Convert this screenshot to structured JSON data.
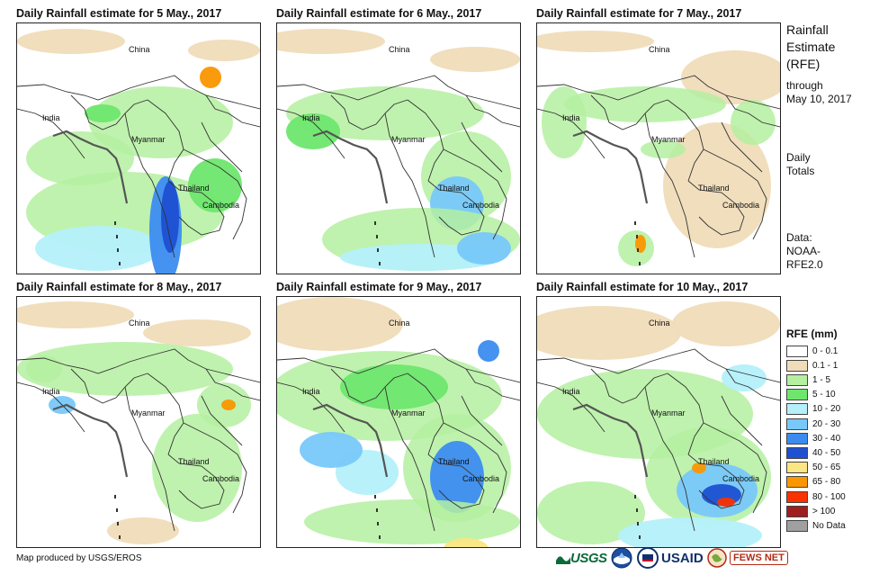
{
  "panels": [
    {
      "title": "Daily Rainfall estimate for 5 May., 2017",
      "labels": {
        "china": "China",
        "india": "India",
        "myanmar": "Myanmar",
        "thailand": "Thailand",
        "cambodia": "Cambodia"
      }
    },
    {
      "title": "Daily Rainfall estimate for 6 May., 2017",
      "labels": {
        "china": "China",
        "india": "India",
        "myanmar": "Myanmar",
        "thailand": "Thailand",
        "cambodia": "Cambodia"
      }
    },
    {
      "title": "Daily Rainfall estimate for 7 May., 2017",
      "labels": {
        "china": "China",
        "india": "India",
        "myanmar": "Myanmar",
        "thailand": "Thailand",
        "cambodia": "Cambodia"
      }
    },
    {
      "title": "Daily Rainfall estimate for 8 May., 2017",
      "labels": {
        "china": "China",
        "india": "India",
        "myanmar": "Myanmar",
        "thailand": "Thailand",
        "cambodia": "Cambodia"
      }
    },
    {
      "title": "Daily Rainfall estimate for 9 May., 2017",
      "labels": {
        "china": "China",
        "india": "India",
        "myanmar": "Myanmar",
        "thailand": "Thailand",
        "cambodia": "Cambodia"
      }
    },
    {
      "title": "Daily Rainfall estimate for 10 May., 2017",
      "labels": {
        "china": "China",
        "india": "India",
        "myanmar": "Myanmar",
        "thailand": "Thailand",
        "cambodia": "Cambodia"
      }
    }
  ],
  "sidebar": {
    "title_line1": "Rainfall",
    "title_line2": "Estimate",
    "title_line3": "(RFE)",
    "through_label": "through",
    "through_date": "May 10, 2017",
    "daily_line1": "Daily",
    "daily_line2": "Totals",
    "data_line1": "Data:",
    "data_line2": "NOAA-",
    "data_line3": "RFE2.0"
  },
  "legend": {
    "title": "RFE (mm)",
    "items": [
      {
        "label": "0 - 0.1",
        "color": "#ffffff"
      },
      {
        "label": "0.1 - 1",
        "color": "#f0dcb9"
      },
      {
        "label": "1 - 5",
        "color": "#b4f0a0"
      },
      {
        "label": "5 - 10",
        "color": "#6ee66e"
      },
      {
        "label": "10 - 20",
        "color": "#b4f0fa"
      },
      {
        "label": "20 - 30",
        "color": "#78c8fa"
      },
      {
        "label": "30 - 40",
        "color": "#3c8cf0"
      },
      {
        "label": "40 - 50",
        "color": "#1e50d2"
      },
      {
        "label": "50 - 65",
        "color": "#fae682"
      },
      {
        "label": "65 - 80",
        "color": "#fa9600"
      },
      {
        "label": "80 - 100",
        "color": "#fa3200"
      },
      {
        "label": "> 100",
        "color": "#a01e1e"
      },
      {
        "label": "No Data",
        "color": "#a0a0a0"
      }
    ]
  },
  "footer": {
    "credit": "Map produced by USGS/EROS",
    "logo_usgs": "USGS",
    "logo_usaid": "USAID",
    "logo_fews": "FEWS NET"
  }
}
